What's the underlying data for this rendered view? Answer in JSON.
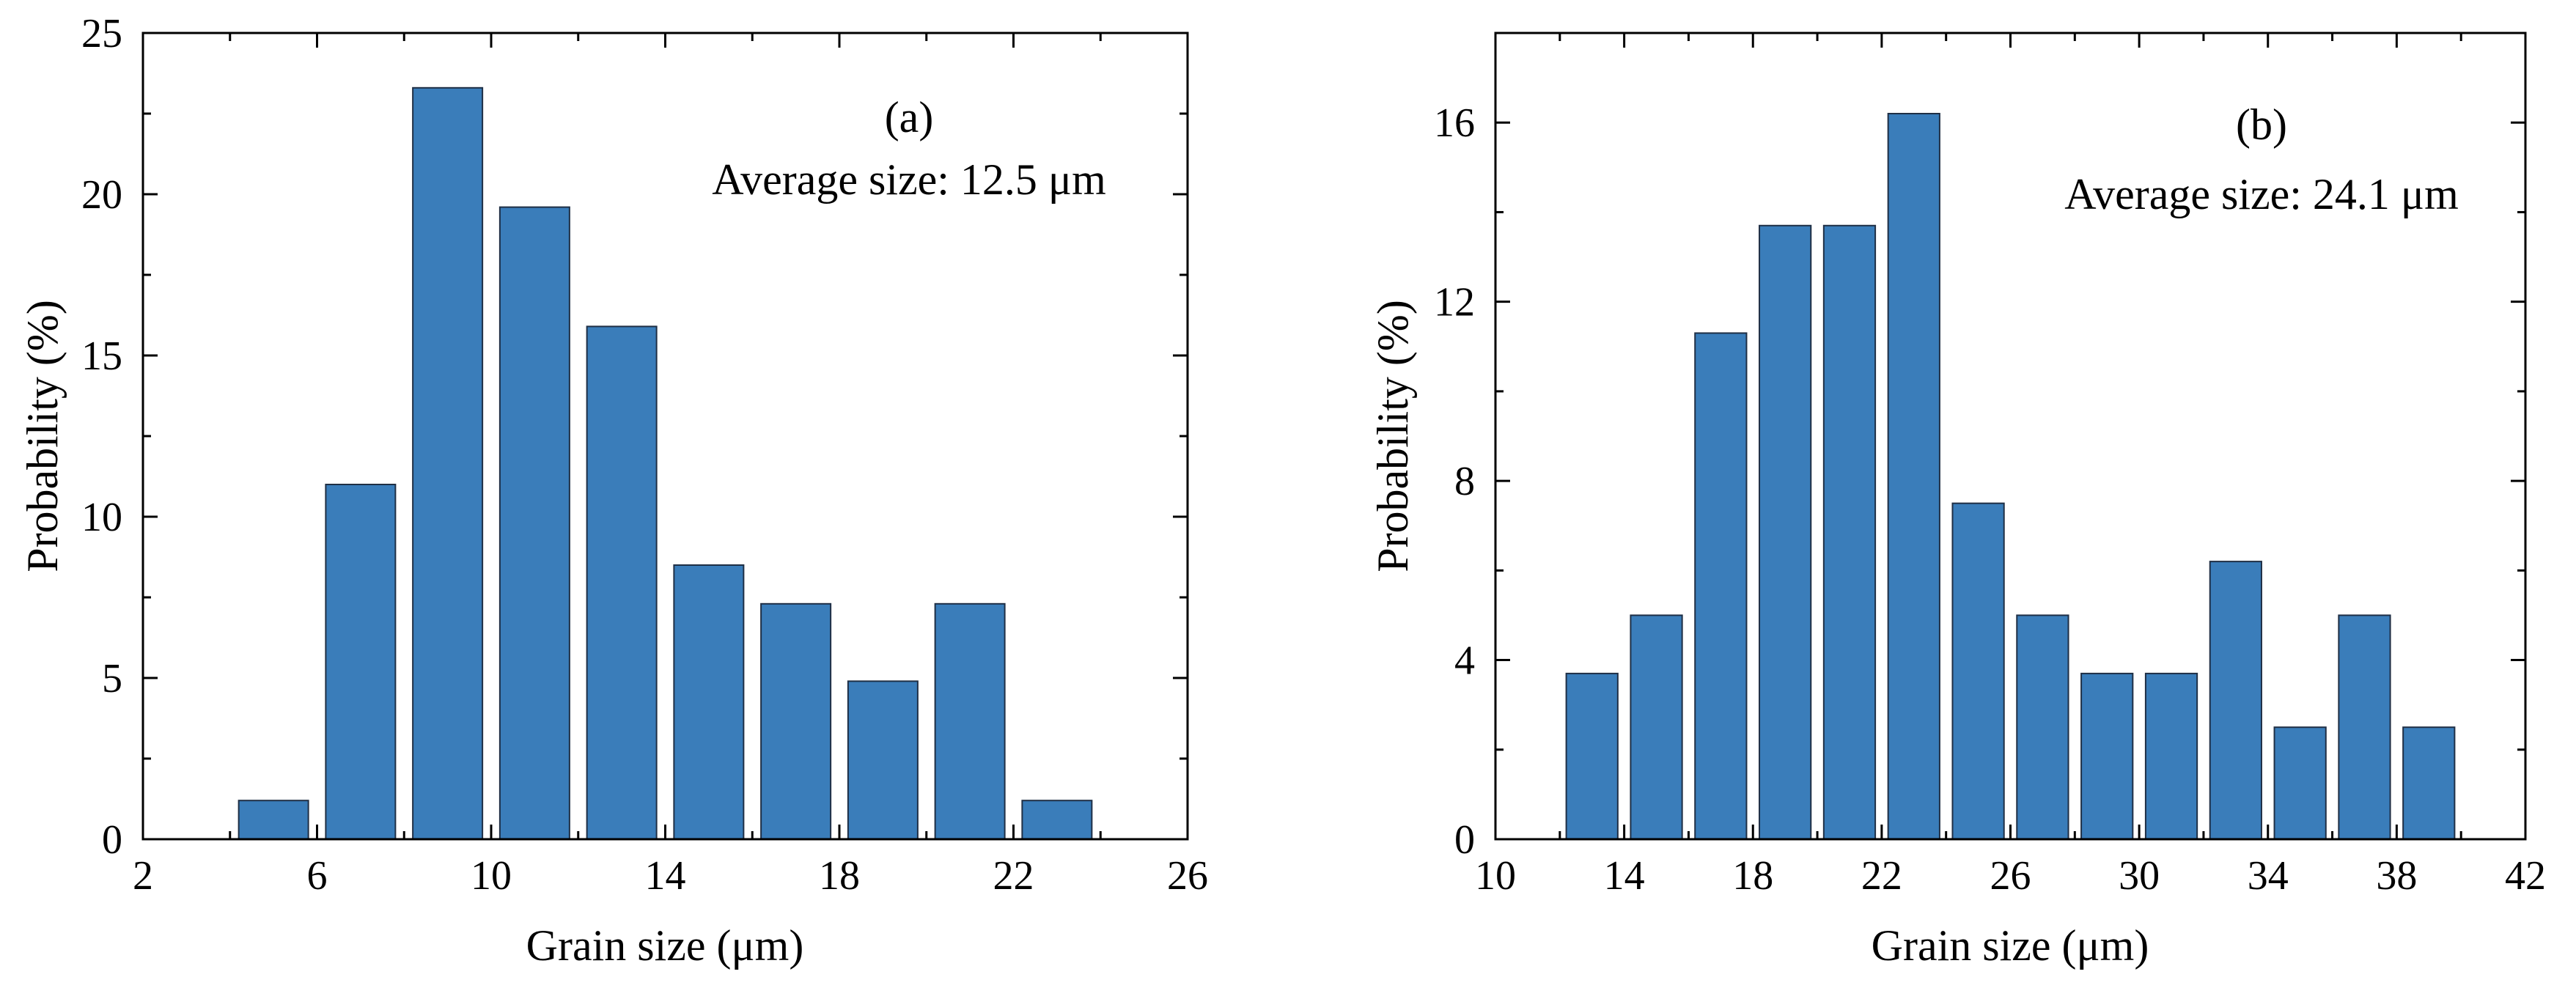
{
  "chart_data": [
    {
      "type": "bar",
      "panel_label": "(a)",
      "annotation": "Average size: 12.5 μm",
      "xlabel": "Grain size (μm)",
      "ylabel": "Probability (%)",
      "xlim": [
        2,
        26
      ],
      "ylim": [
        0,
        25
      ],
      "xticks": [
        "2",
        "6",
        "10",
        "14",
        "18",
        "22",
        "26"
      ],
      "yticks": [
        "0",
        "5",
        "10",
        "15",
        "20",
        "25"
      ],
      "bar_width": 1.6,
      "centers": [
        5,
        7,
        9,
        11,
        13,
        15,
        17,
        19,
        21,
        23
      ],
      "values": [
        1.2,
        11.0,
        23.3,
        19.6,
        15.9,
        8.5,
        7.3,
        4.9,
        7.3,
        1.2
      ],
      "bar_color": "#3a7dba"
    },
    {
      "type": "bar",
      "panel_label": "(b)",
      "annotation": "Average size: 24.1 μm",
      "xlabel": "Grain size (μm)",
      "ylabel": "Probability (%)",
      "xlim": [
        10,
        42
      ],
      "ylim": [
        0,
        18
      ],
      "xticks": [
        "10",
        "14",
        "18",
        "22",
        "26",
        "30",
        "34",
        "38",
        "42"
      ],
      "yticks": [
        "0",
        "4",
        "8",
        "12",
        "16"
      ],
      "bar_width": 1.6,
      "centers": [
        13,
        15,
        17,
        19,
        21,
        23,
        25,
        27,
        29,
        31,
        33,
        35,
        37,
        39
      ],
      "values": [
        3.7,
        5.0,
        11.3,
        13.7,
        13.7,
        16.2,
        7.5,
        5.0,
        3.7,
        3.7,
        6.2,
        2.5,
        5.0,
        2.5
      ],
      "bar_color": "#3a7dba"
    }
  ]
}
